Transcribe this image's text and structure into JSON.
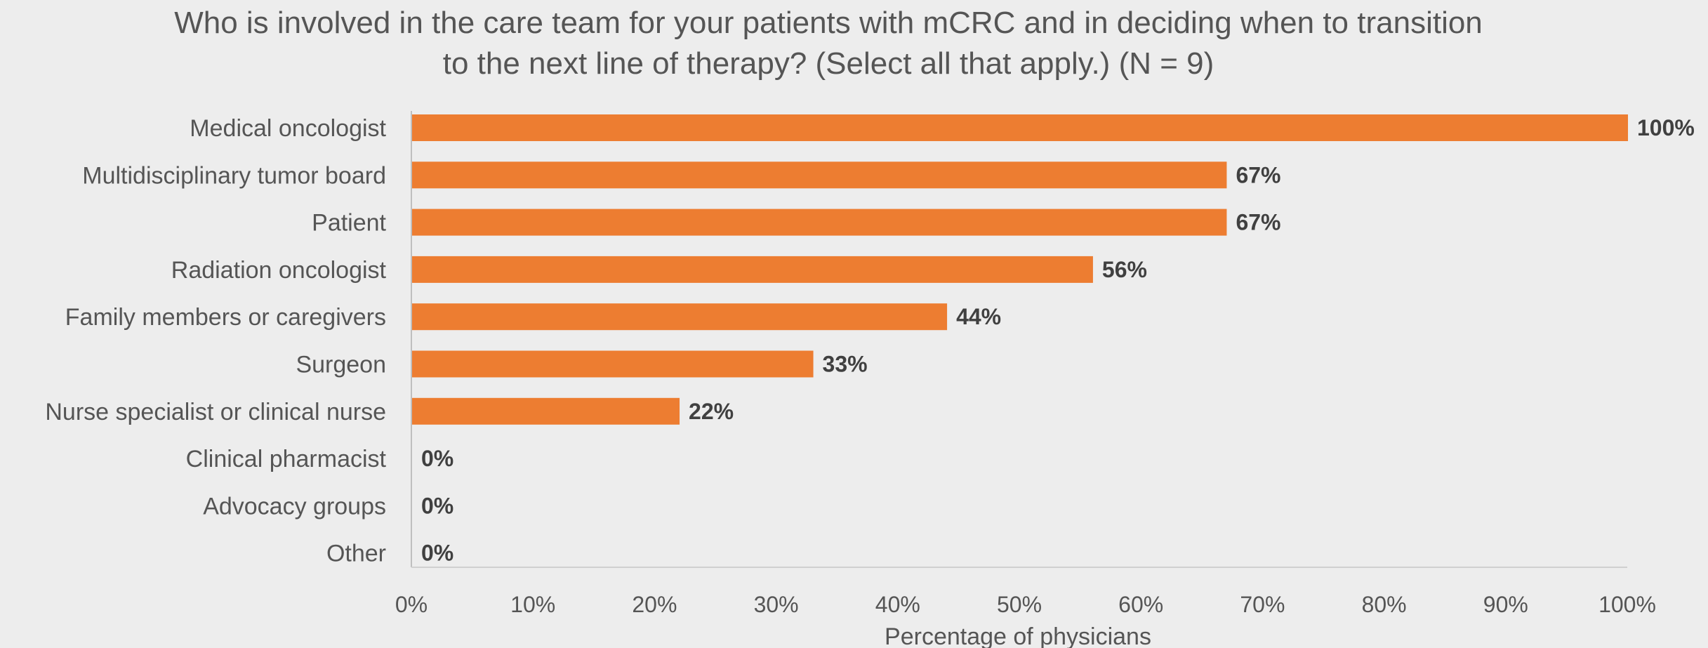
{
  "chart_data": {
    "type": "bar",
    "orientation": "horizontal",
    "title": "Who is involved in the care team for your patients with mCRC and in deciding when to transition to the next line of therapy? (Select all that apply.) (N = 9)",
    "categories": [
      "Medical oncologist",
      "Multidisciplinary tumor board",
      "Patient",
      "Radiation oncologist",
      "Family members or caregivers",
      "Surgeon",
      "Nurse specialist or clinical nurse",
      "Clinical pharmacist",
      "Advocacy groups",
      "Other"
    ],
    "values": [
      100,
      67,
      67,
      56,
      44,
      33,
      22,
      0,
      0,
      0
    ],
    "value_labels": [
      "100%",
      "67%",
      "67%",
      "56%",
      "44%",
      "33%",
      "22%",
      "0%",
      "0%",
      "0%"
    ],
    "x_ticks": [
      "0%",
      "10%",
      "20%",
      "30%",
      "40%",
      "50%",
      "60%",
      "70%",
      "80%",
      "90%",
      "100%"
    ],
    "xlabel": "Percentage of physicians",
    "ylabel": "",
    "xlim": [
      0,
      100
    ],
    "grid": false,
    "legend": "none",
    "bar_color": "#ed7d31"
  }
}
